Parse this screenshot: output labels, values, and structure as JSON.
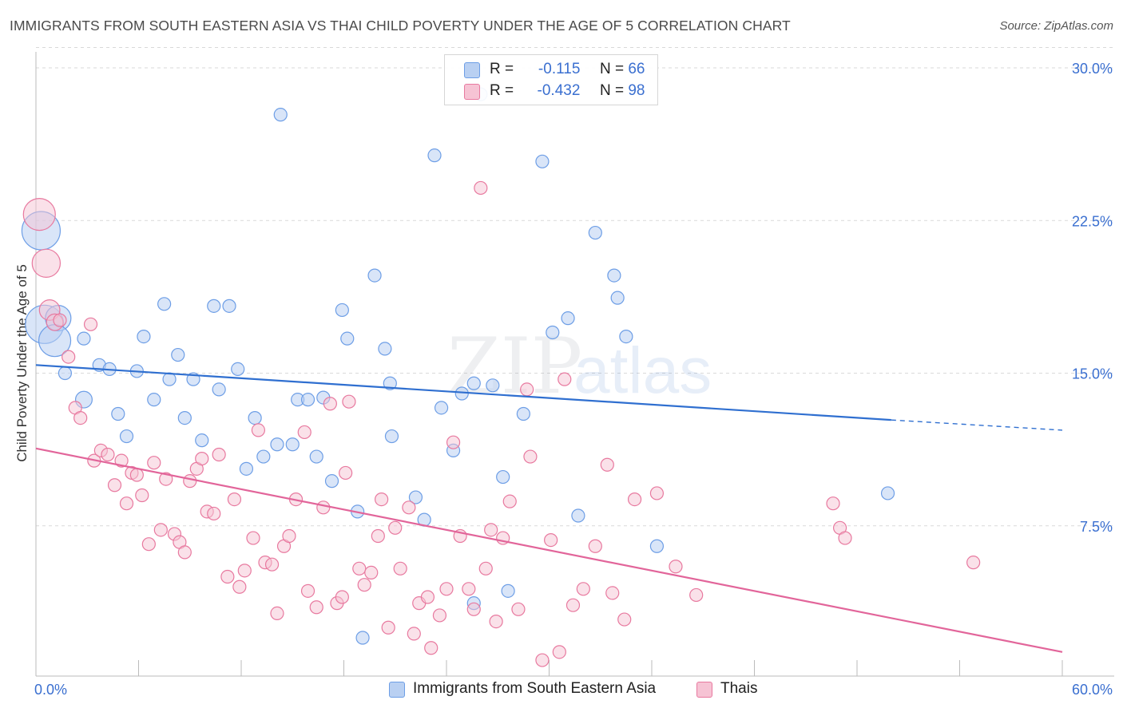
{
  "header": {
    "title": "IMMIGRANTS FROM SOUTH EASTERN ASIA VS THAI CHILD POVERTY UNDER THE AGE OF 5 CORRELATION CHART",
    "source": "Source: ZipAtlas.com"
  },
  "watermark": {
    "zip": "ZIP",
    "atlas": "atlas"
  },
  "legend": {
    "r_label": "R =",
    "n_label": "N =",
    "series": [
      {
        "name": "Immigrants from South Eastern Asia",
        "r": "-0.115",
        "n": "66",
        "color": "#6d9ee6",
        "fill": "#b9d0f2"
      },
      {
        "name": "Thais",
        "r": "-0.432",
        "n": "98",
        "color": "#e8799f",
        "fill": "#f6c3d4"
      }
    ]
  },
  "chart_data": {
    "type": "scatter",
    "title": "IMMIGRANTS FROM SOUTH EASTERN ASIA VS THAI CHILD POVERTY UNDER THE AGE OF 5 CORRELATION CHART",
    "xlabel": "",
    "ylabel": "Child Poverty Under the Age of 5",
    "xlim": [
      0,
      60
    ],
    "ylim": [
      0,
      31
    ],
    "x_tick_labels": [
      "0.0%",
      "60.0%"
    ],
    "y_ticks": [
      7.5,
      15.0,
      22.5,
      30.0
    ],
    "y_tick_labels": [
      "7.5%",
      "15.0%",
      "22.5%",
      "30.0%"
    ],
    "grid": "horizontal dashed",
    "legend_position": "top-center",
    "series": [
      {
        "name": "Immigrants from South Eastern Asia",
        "color": "#6d9ee6",
        "trend": {
          "x": [
            0,
            50,
            60
          ],
          "y": [
            15.4,
            12.7,
            12.2
          ]
        },
        "points": [
          [
            0.3,
            22.0,
            3
          ],
          [
            0.5,
            17.4,
            3
          ],
          [
            1.3,
            17.7,
            2
          ],
          [
            1.1,
            16.6,
            2.5
          ],
          [
            1.7,
            15.0,
            1
          ],
          [
            2.8,
            16.7,
            1
          ],
          [
            3.7,
            15.4,
            1
          ],
          [
            4.3,
            15.2,
            1
          ],
          [
            2.8,
            13.7,
            1.3
          ],
          [
            4.8,
            13.0,
            1
          ],
          [
            5.3,
            11.9,
            1
          ],
          [
            5.9,
            15.1,
            1
          ],
          [
            6.3,
            16.8,
            1
          ],
          [
            6.9,
            13.7,
            1
          ],
          [
            7.5,
            18.4,
            1
          ],
          [
            7.8,
            14.7,
            1
          ],
          [
            8.3,
            15.9,
            1
          ],
          [
            8.7,
            12.8,
            1
          ],
          [
            9.2,
            14.7,
            1
          ],
          [
            9.7,
            11.7,
            1
          ],
          [
            10.4,
            18.3,
            1
          ],
          [
            10.7,
            14.2,
            1
          ],
          [
            11.3,
            18.3,
            1
          ],
          [
            11.8,
            15.2,
            1
          ],
          [
            12.3,
            10.3,
            1
          ],
          [
            12.8,
            12.8,
            1
          ],
          [
            13.3,
            10.9,
            1
          ],
          [
            14.1,
            11.5,
            1
          ],
          [
            14.3,
            27.7,
            1
          ],
          [
            15.0,
            11.5,
            1
          ],
          [
            15.3,
            13.7,
            1
          ],
          [
            15.9,
            13.7,
            1
          ],
          [
            16.4,
            10.9,
            1
          ],
          [
            16.8,
            13.8,
            1
          ],
          [
            17.3,
            9.7,
            1
          ],
          [
            17.9,
            18.1,
            1
          ],
          [
            18.2,
            16.7,
            1
          ],
          [
            18.8,
            8.2,
            1
          ],
          [
            19.1,
            2.0,
            1
          ],
          [
            19.8,
            19.8,
            1
          ],
          [
            20.4,
            16.2,
            1
          ],
          [
            20.7,
            14.5,
            1
          ],
          [
            20.8,
            11.9,
            1
          ],
          [
            22.2,
            8.9,
            1
          ],
          [
            22.7,
            7.8,
            1
          ],
          [
            23.3,
            25.7,
            1
          ],
          [
            23.7,
            13.3,
            1
          ],
          [
            24.4,
            11.2,
            1
          ],
          [
            24.9,
            14.0,
            1
          ],
          [
            25.6,
            14.5,
            1
          ],
          [
            25.6,
            3.7,
            1
          ],
          [
            26.7,
            14.4,
            1
          ],
          [
            27.3,
            9.9,
            1
          ],
          [
            27.6,
            4.3,
            1
          ],
          [
            28.5,
            13.0,
            1
          ],
          [
            29.6,
            25.4,
            1
          ],
          [
            30.2,
            17.0,
            1
          ],
          [
            31.1,
            17.7,
            1
          ],
          [
            31.7,
            8.0,
            1
          ],
          [
            32.7,
            21.9,
            1
          ],
          [
            33.8,
            19.8,
            1
          ],
          [
            34.0,
            18.7,
            1
          ],
          [
            34.5,
            16.8,
            1
          ],
          [
            36.3,
            6.5,
            1
          ],
          [
            49.8,
            9.1,
            1
          ],
          [
            26.0,
            28.7,
            1
          ]
        ]
      },
      {
        "name": "Thais",
        "color": "#e8799f",
        "trend": {
          "x": [
            0,
            60
          ],
          "y": [
            11.3,
            1.3
          ]
        },
        "points": [
          [
            0.2,
            22.8,
            2.5
          ],
          [
            0.6,
            20.4,
            2.2
          ],
          [
            0.8,
            18.1,
            1.6
          ],
          [
            1.1,
            17.5,
            1.3
          ],
          [
            1.4,
            17.6,
            1
          ],
          [
            1.9,
            15.8,
            1
          ],
          [
            2.3,
            13.3,
            1
          ],
          [
            2.6,
            12.8,
            1
          ],
          [
            3.2,
            17.4,
            1
          ],
          [
            3.4,
            10.7,
            1
          ],
          [
            3.8,
            11.2,
            1
          ],
          [
            4.2,
            11.0,
            1
          ],
          [
            4.6,
            9.5,
            1
          ],
          [
            5.0,
            10.7,
            1
          ],
          [
            5.3,
            8.6,
            1
          ],
          [
            5.6,
            10.1,
            1
          ],
          [
            5.9,
            10.0,
            1
          ],
          [
            6.2,
            9.0,
            1
          ],
          [
            6.6,
            6.6,
            1
          ],
          [
            6.9,
            10.6,
            1
          ],
          [
            7.3,
            7.3,
            1
          ],
          [
            7.6,
            9.8,
            1
          ],
          [
            8.1,
            7.1,
            1
          ],
          [
            8.4,
            6.7,
            1
          ],
          [
            8.7,
            6.2,
            1
          ],
          [
            9.0,
            9.7,
            1
          ],
          [
            9.4,
            10.3,
            1
          ],
          [
            9.7,
            10.8,
            1
          ],
          [
            10.0,
            8.2,
            1
          ],
          [
            10.4,
            8.1,
            1
          ],
          [
            10.7,
            11.0,
            1
          ],
          [
            11.2,
            5.0,
            1
          ],
          [
            11.6,
            8.8,
            1
          ],
          [
            11.9,
            4.5,
            1
          ],
          [
            12.2,
            5.3,
            1
          ],
          [
            12.7,
            6.9,
            1
          ],
          [
            13.0,
            12.2,
            1
          ],
          [
            13.4,
            5.7,
            1
          ],
          [
            13.8,
            5.6,
            1
          ],
          [
            14.1,
            3.2,
            1
          ],
          [
            14.5,
            6.5,
            1
          ],
          [
            14.8,
            7.0,
            1
          ],
          [
            15.2,
            8.8,
            1
          ],
          [
            15.7,
            12.1,
            1
          ],
          [
            15.9,
            4.3,
            1
          ],
          [
            16.4,
            3.5,
            1
          ],
          [
            16.8,
            8.4,
            1
          ],
          [
            17.2,
            13.5,
            1
          ],
          [
            17.6,
            3.7,
            1
          ],
          [
            17.9,
            4.0,
            1
          ],
          [
            18.1,
            10.1,
            1
          ],
          [
            18.3,
            13.6,
            1
          ],
          [
            18.9,
            5.4,
            1
          ],
          [
            19.2,
            4.6,
            1
          ],
          [
            19.6,
            5.2,
            1
          ],
          [
            20.0,
            7.0,
            1
          ],
          [
            20.2,
            8.8,
            1
          ],
          [
            20.6,
            2.5,
            1
          ],
          [
            21.0,
            7.4,
            1
          ],
          [
            21.3,
            5.4,
            1
          ],
          [
            21.8,
            8.4,
            1
          ],
          [
            22.1,
            2.2,
            1
          ],
          [
            22.4,
            3.7,
            1
          ],
          [
            22.9,
            4.0,
            1
          ],
          [
            23.1,
            1.5,
            1
          ],
          [
            23.6,
            3.1,
            1
          ],
          [
            24.0,
            4.4,
            1
          ],
          [
            24.4,
            11.6,
            1
          ],
          [
            24.8,
            7.0,
            1
          ],
          [
            25.3,
            4.4,
            1
          ],
          [
            25.6,
            3.4,
            1
          ],
          [
            26.0,
            24.1,
            1
          ],
          [
            26.3,
            5.4,
            1
          ],
          [
            26.6,
            7.3,
            1
          ],
          [
            26.9,
            2.8,
            1
          ],
          [
            27.3,
            6.9,
            1
          ],
          [
            27.7,
            8.7,
            1
          ],
          [
            28.2,
            3.4,
            1
          ],
          [
            28.7,
            14.2,
            1
          ],
          [
            28.9,
            10.9,
            1
          ],
          [
            29.6,
            0.9,
            1
          ],
          [
            30.1,
            6.8,
            1
          ],
          [
            30.6,
            1.3,
            1
          ],
          [
            30.9,
            14.7,
            1
          ],
          [
            31.4,
            3.6,
            1
          ],
          [
            32.0,
            4.4,
            1
          ],
          [
            32.7,
            6.5,
            1
          ],
          [
            33.4,
            10.5,
            1
          ],
          [
            33.7,
            4.2,
            1
          ],
          [
            34.4,
            2.9,
            1
          ],
          [
            35.0,
            8.8,
            1
          ],
          [
            36.3,
            9.1,
            1
          ],
          [
            37.4,
            5.5,
            1
          ],
          [
            38.6,
            4.1,
            1
          ],
          [
            46.6,
            8.6,
            1
          ],
          [
            47.0,
            7.4,
            1
          ],
          [
            47.3,
            6.9,
            1
          ],
          [
            54.8,
            5.7,
            1
          ]
        ]
      }
    ]
  }
}
